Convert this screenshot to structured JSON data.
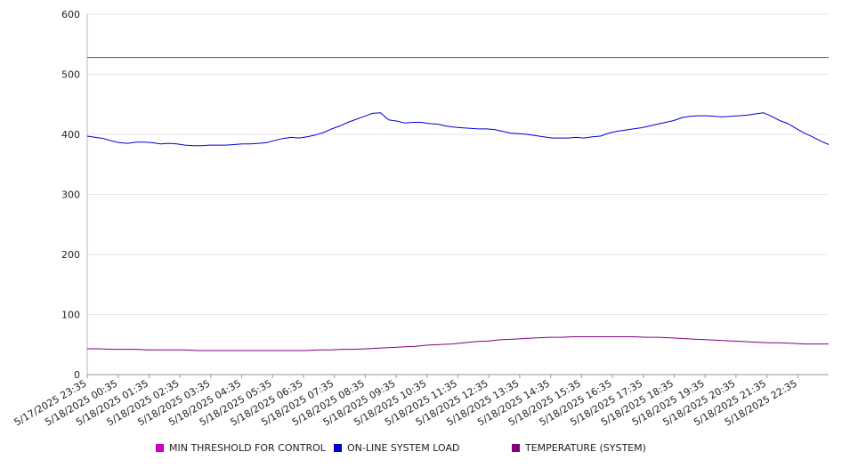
{
  "chart_data": {
    "type": "line",
    "ylim": [
      0,
      600
    ],
    "y_ticks": [
      "0",
      "100",
      "200",
      "300",
      "400",
      "500",
      "600"
    ],
    "x_ticks": [
      "5/17/2025 23:35",
      "5/18/2025 00:35",
      "5/18/2025 01:35",
      "5/18/2025 02:35",
      "5/18/2025 03:35",
      "5/18/2025 04:35",
      "5/18/2025 05:35",
      "5/18/2025 06:35",
      "5/18/2025 07:35",
      "5/18/2025 08:35",
      "5/18/2025 09:35",
      "5/18/2025 10:35",
      "5/18/2025 11:35",
      "5/18/2025 12:35",
      "5/18/2025 13:35",
      "5/18/2025 14:35",
      "5/18/2025 15:35",
      "5/18/2025 16:35",
      "5/18/2025 17:35",
      "5/18/2025 18:35",
      "5/18/2025 19:35",
      "5/18/2025 20:35",
      "5/18/2025 21:35",
      "5/18/2025 22:35"
    ],
    "x_range": [
      "5/17/2025 23:35",
      "5/18/2025 23:35"
    ],
    "grid": true,
    "legend_position": "bottom",
    "series": [
      {
        "name": "MIN THRESHOLD FOR CONTROL",
        "color": "#cc00cc",
        "values": [
          528,
          528
        ]
      },
      {
        "name": "ON-LINE SYSTEM LOAD",
        "color": "#0000cc",
        "values": [
          397,
          395,
          393,
          389,
          386,
          385,
          387,
          387,
          386,
          384,
          385,
          384,
          382,
          381,
          381,
          382,
          382,
          382,
          383,
          384,
          384,
          385,
          386,
          390,
          393,
          395,
          394,
          396,
          399,
          403,
          409,
          414,
          420,
          425,
          430,
          435,
          436,
          424,
          422,
          419,
          420,
          420,
          418,
          417,
          414,
          412,
          411,
          410,
          409,
          409,
          408,
          405,
          402,
          401,
          400,
          398,
          396,
          394,
          394,
          394,
          395,
          394,
          396,
          397,
          402,
          405,
          407,
          409,
          411,
          414,
          417,
          420,
          423,
          428,
          430,
          431,
          431,
          430,
          429,
          430,
          431,
          432,
          434,
          436,
          430,
          423,
          418,
          410,
          402,
          396,
          389,
          383
        ]
      },
      {
        "name": "TEMPERATURE (SYSTEM)",
        "color": "#800080",
        "values": [
          43,
          43,
          42,
          42,
          42,
          41,
          41,
          41,
          41,
          40,
          40,
          40,
          40,
          40,
          40,
          40,
          40,
          40,
          40,
          41,
          41,
          42,
          42,
          43,
          44,
          45,
          46,
          47,
          49,
          50,
          51,
          53,
          55,
          56,
          58,
          59,
          60,
          61,
          62,
          62,
          63,
          63,
          63,
          63,
          63,
          63,
          62,
          62,
          61,
          60,
          59,
          58,
          57,
          56,
          55,
          54,
          53,
          53,
          52,
          51,
          51,
          51
        ]
      }
    ]
  }
}
